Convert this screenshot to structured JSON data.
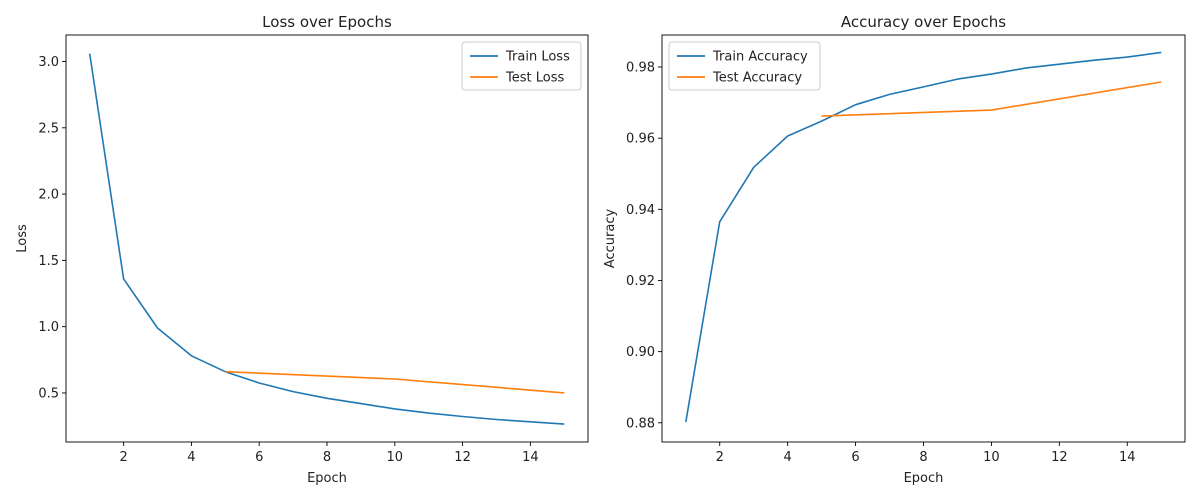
{
  "colors": {
    "train": "#1f77b4",
    "test": "#ff7f0e",
    "axis": "#000000",
    "legend_border": "#cccccc"
  },
  "chart_data": [
    {
      "type": "line",
      "title": "Loss over Epochs",
      "xlabel": "Epoch",
      "ylabel": "Loss",
      "xlim": [
        0.3,
        15.7
      ],
      "ylim": [
        0.13,
        3.2
      ],
      "xticks": [
        2,
        4,
        6,
        8,
        10,
        12,
        14
      ],
      "yticks": [
        0.5,
        1.0,
        1.5,
        2.0,
        2.5,
        3.0
      ],
      "ytick_labels": [
        "0.5",
        "1.0",
        "1.5",
        "2.0",
        "2.5",
        "3.0"
      ],
      "grid": false,
      "legend_position": "top-right",
      "series": [
        {
          "name": "Train Loss",
          "color_key": "train",
          "x": [
            1,
            2,
            3,
            4,
            5,
            6,
            7,
            8,
            9,
            10,
            11,
            12,
            13,
            14,
            15
          ],
          "y": [
            3.06,
            1.36,
            0.99,
            0.78,
            0.66,
            0.575,
            0.51,
            0.46,
            0.42,
            0.38,
            0.348,
            0.322,
            0.3,
            0.282,
            0.265
          ]
        },
        {
          "name": "Test Loss",
          "color_key": "test",
          "x": [
            5,
            10,
            15
          ],
          "y": [
            0.66,
            0.605,
            0.5
          ]
        }
      ]
    },
    {
      "type": "line",
      "title": "Accuracy over Epochs",
      "xlabel": "Epoch",
      "ylabel": "Accuracy",
      "xlim": [
        0.3,
        15.7
      ],
      "ylim": [
        0.8746,
        0.989
      ],
      "xticks": [
        2,
        4,
        6,
        8,
        10,
        12,
        14
      ],
      "yticks": [
        0.88,
        0.9,
        0.92,
        0.94,
        0.96,
        0.98
      ],
      "ytick_labels": [
        "0.88",
        "0.90",
        "0.92",
        "0.94",
        "0.96",
        "0.98"
      ],
      "grid": false,
      "legend_position": "top-left",
      "series": [
        {
          "name": "Train Accuracy",
          "color_key": "train",
          "x": [
            1,
            2,
            3,
            4,
            5,
            6,
            7,
            8,
            9,
            10,
            11,
            12,
            13,
            14,
            15
          ],
          "y": [
            0.8802,
            0.9365,
            0.9518,
            0.9606,
            0.9648,
            0.9694,
            0.9723,
            0.9744,
            0.9766,
            0.978,
            0.9797,
            0.9808,
            0.9819,
            0.9828,
            0.9841
          ]
        },
        {
          "name": "Test Accuracy",
          "color_key": "test",
          "x": [
            5,
            10,
            15
          ],
          "y": [
            0.9662,
            0.9679,
            0.9758
          ]
        }
      ]
    }
  ]
}
